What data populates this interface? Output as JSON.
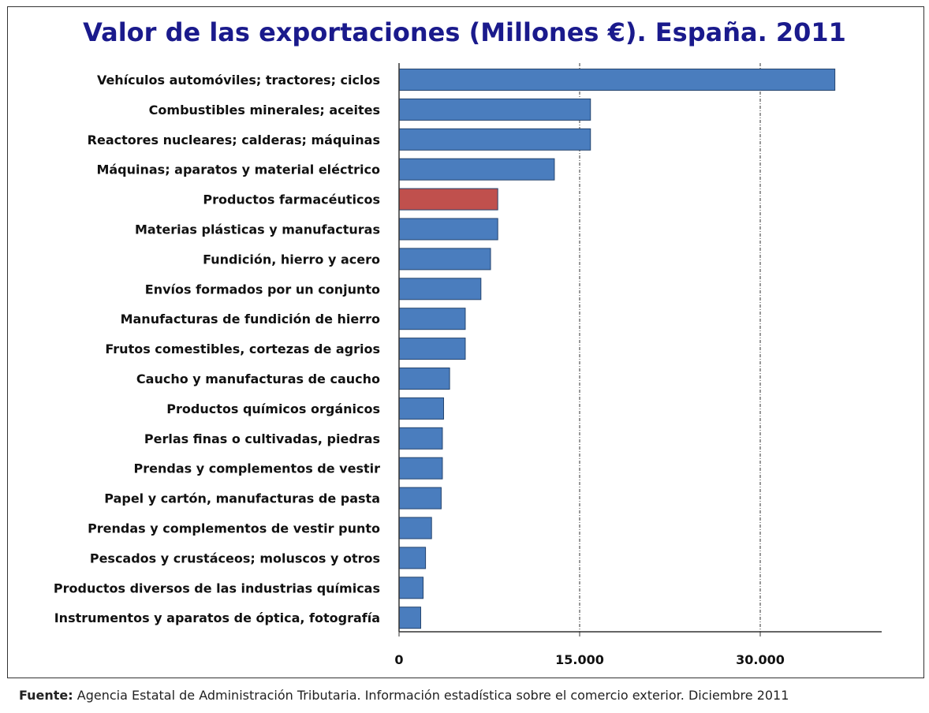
{
  "chart_data": {
    "type": "bar",
    "orientation": "horizontal",
    "title": "Valor de las exportaciones (Millones €). España. 2011",
    "categories": [
      "Vehículos automóviles; tractores; ciclos",
      "Combustibles minerales; aceites",
      "Reactores nucleares; calderas; máquinas",
      "Máquinas; aparatos y material eléctrico",
      "Productos farmacéuticos",
      "Materias plásticas y manufacturas",
      "Fundición, hierro y acero",
      "Envíos formados por un conjunto",
      "Manufacturas de fundición de hierro",
      "Frutos comestibles, cortezas de agrios",
      "Caucho y manufacturas de caucho",
      "Productos químicos orgánicos",
      "Perlas finas o cultivadas, piedras",
      "Prendas y complementos de vestir",
      "Papel y cartón, manufacturas de pasta",
      "Prendas y complementos de vestir punto",
      "Pescados y crustáceos; moluscos y otros",
      "Productos diversos de las industrias químicas",
      "Instrumentos y aparatos de óptica, fotografía"
    ],
    "values": [
      36200,
      15900,
      15900,
      12900,
      8200,
      8200,
      7600,
      6800,
      5500,
      5500,
      4200,
      3700,
      3600,
      3600,
      3500,
      2700,
      2200,
      2000,
      1800
    ],
    "highlight_index": 4,
    "colors": {
      "bar": "#4a7dbe",
      "highlight": "#c0504d",
      "bar_border": "#24446e",
      "title": "#1a1a8c"
    },
    "xlim": [
      0,
      40000
    ],
    "xticks": [
      0,
      15000,
      30000
    ],
    "xtick_labels": [
      "0",
      "15.000",
      "30.000"
    ],
    "grid": "vertical dashed at major ticks"
  },
  "footer": {
    "label": "Fuente:",
    "text": " Agencia Estatal de Administración Tributaria. Información estadística sobre el comercio exterior. Diciembre 2011"
  }
}
